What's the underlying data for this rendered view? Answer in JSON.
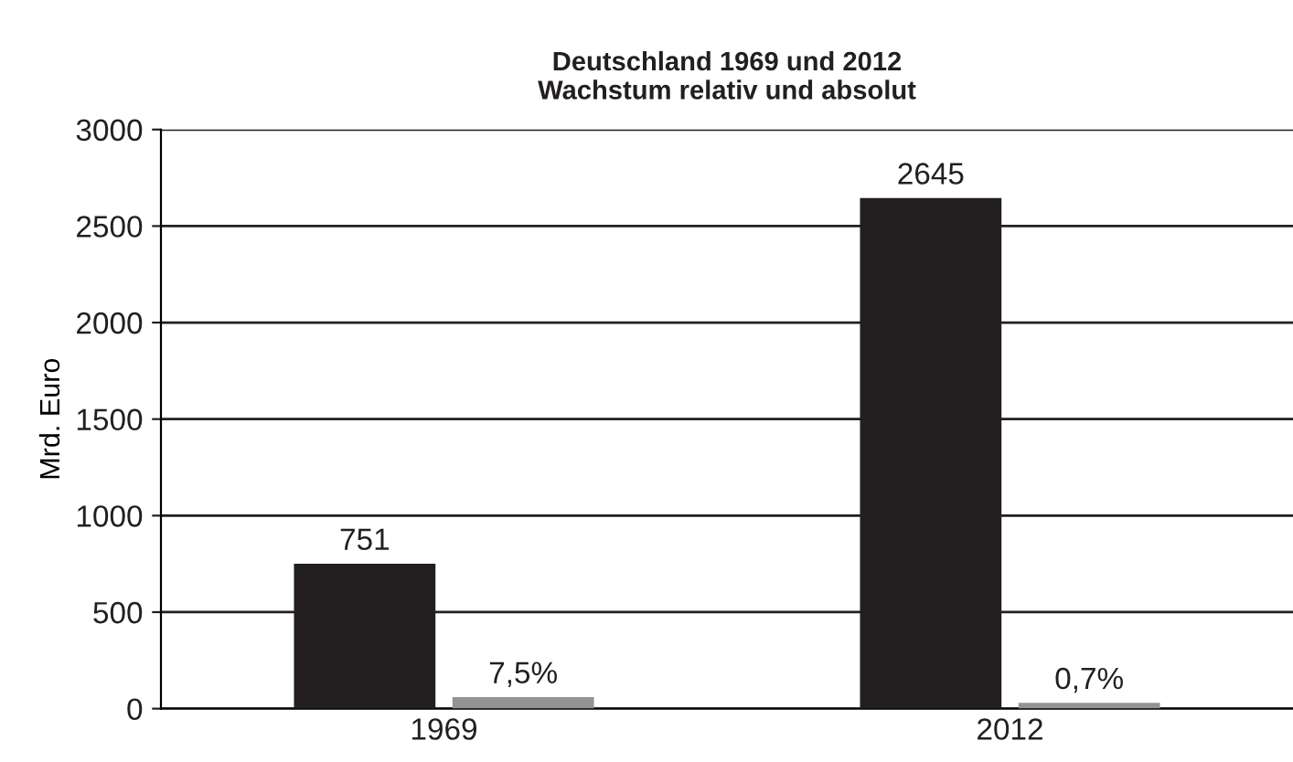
{
  "chart_data": {
    "type": "bar",
    "title": "Deutschland 1969 und 2012\nWachstum relativ und absolut",
    "ylabel": "Mrd. Euro",
    "categories": [
      "1969",
      "2012"
    ],
    "series": [
      {
        "color": "#231f20",
        "values": [
          751,
          2645
        ],
        "value_labels": [
          "751",
          "2645"
        ]
      },
      {
        "color": "#939393",
        "values": [
          60,
          30
        ]
      }
    ],
    "annotations": [
      {
        "text": "7,5%",
        "x": "1969",
        "y": 60
      },
      {
        "text": "0,7%",
        "x": "2012",
        "y": 30
      }
    ],
    "ylim": [
      0,
      3000
    ],
    "yticks": [
      0,
      500,
      1000,
      1500,
      2000,
      2500,
      3000
    ],
    "grid": "y",
    "legend": false
  }
}
